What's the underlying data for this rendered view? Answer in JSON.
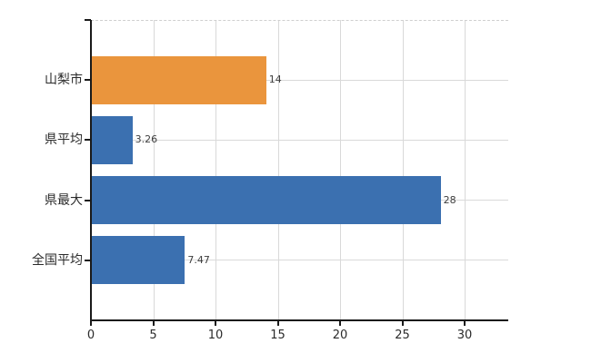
{
  "chart_data": {
    "type": "bar",
    "orientation": "horizontal",
    "title": "",
    "xlabel": "",
    "ylabel": "",
    "categories": [
      "山梨市",
      "県平均",
      "県最大",
      "全国平均"
    ],
    "values": [
      14,
      3.26,
      28,
      7.47
    ],
    "value_labels": [
      "14",
      "3.26",
      "28",
      "7.47"
    ],
    "bar_colors": [
      "#ea953d",
      "#3b70b0",
      "#3b70b0",
      "#3b70b0"
    ],
    "x_ticks": [
      0,
      5,
      10,
      15,
      20,
      25,
      30
    ],
    "x_tick_labels": [
      "0",
      "5",
      "10",
      "15",
      "20",
      "25",
      "30"
    ],
    "xlim": [
      0,
      33.5
    ],
    "grid": true,
    "legend": "none"
  },
  "colors": {
    "orange_bar": "#ea953d",
    "blue_bar": "#3b70b0",
    "gridline": "#d9d9d9",
    "top_border_dashed": "#cfcfcf",
    "axis": "#1a1a1a",
    "category_text": "#2b2b2b",
    "value_text": "#3d3d3d",
    "background": "#ffffff"
  }
}
